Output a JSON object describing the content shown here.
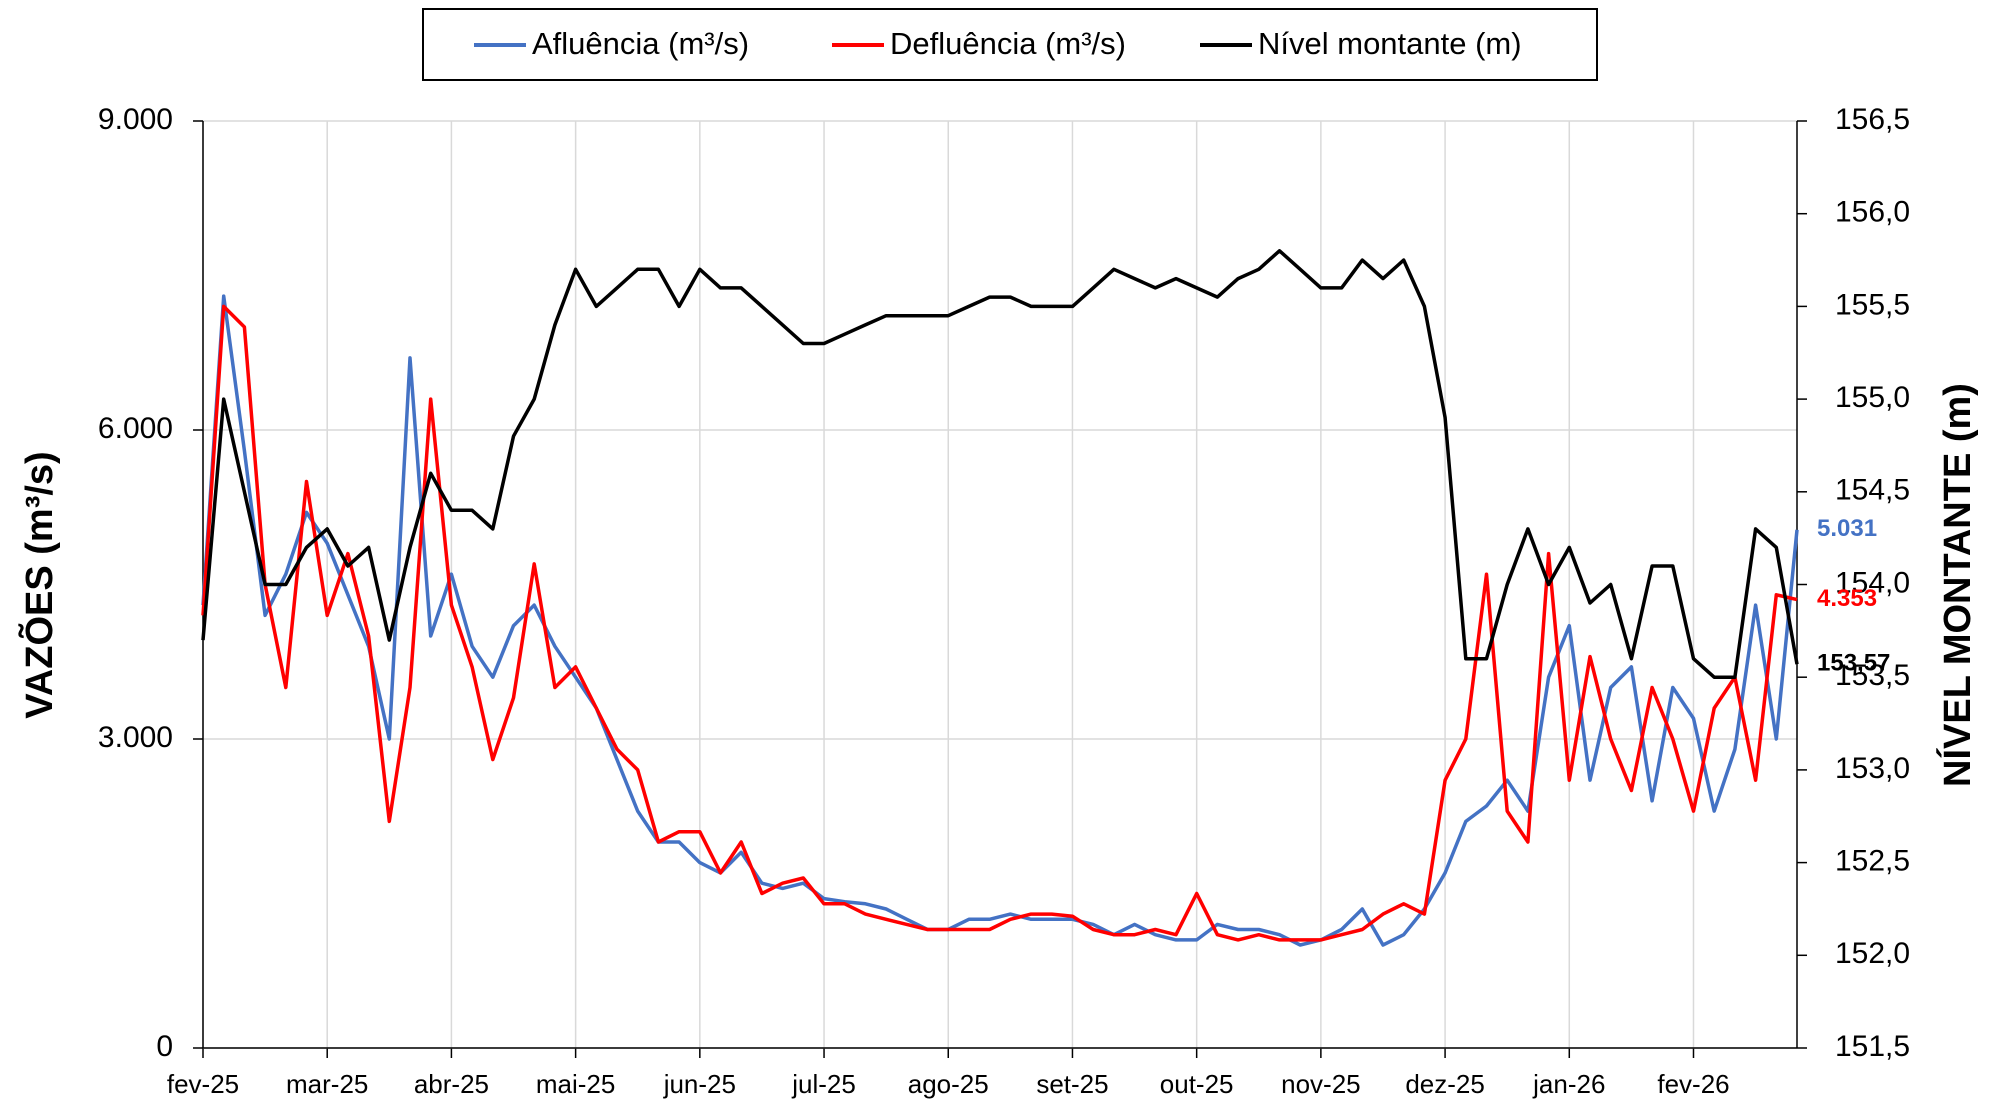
{
  "chart_data": {
    "type": "line",
    "categories": [
      "fev-25",
      null,
      null,
      null,
      null,
      null,
      "mar-25",
      null,
      null,
      null,
      null,
      null,
      "abr-25",
      null,
      null,
      null,
      null,
      null,
      "mai-25",
      null,
      null,
      null,
      null,
      null,
      "jun-25",
      null,
      null,
      null,
      null,
      null,
      "jul-25",
      null,
      null,
      null,
      null,
      null,
      "ago-25",
      null,
      null,
      null,
      null,
      null,
      "set-25",
      null,
      null,
      null,
      null,
      null,
      "out-25",
      null,
      null,
      null,
      null,
      null,
      "nov-25",
      null,
      null,
      null,
      null,
      null,
      "dez-25",
      null,
      null,
      null,
      null,
      null,
      "jan-26",
      null,
      null,
      null,
      null,
      null,
      "fev-26",
      null,
      null,
      null,
      null,
      null
    ],
    "y_label": "VAZÕES (m³/s)",
    "y2_label": "NÍVEL MONTANTE (m)",
    "ylim": [
      0,
      9000
    ],
    "yticks": [
      0,
      {
        "value": 3000,
        "label": "3.000"
      },
      {
        "value": 6000,
        "label": "6.000"
      },
      {
        "value": 9000,
        "label": "9.000"
      }
    ],
    "y2lim": [
      151.5,
      156.5
    ],
    "y2ticks": [
      {
        "value": 151.5,
        "label": "151,5"
      },
      {
        "value": 152,
        "label": "152,0"
      },
      {
        "value": 152.5,
        "label": "152,5"
      },
      {
        "value": 153,
        "label": "153,0"
      },
      {
        "value": 153.5,
        "label": "153,5"
      },
      {
        "value": 154,
        "label": "154,0"
      },
      {
        "value": 154.5,
        "label": "154,5"
      },
      {
        "value": 155,
        "label": "155,0"
      },
      {
        "value": 155.5,
        "label": "155,5"
      },
      {
        "value": 156,
        "label": "156,0"
      },
      {
        "value": 156.5,
        "label": "156,5"
      }
    ],
    "grid": true,
    "legend": "top",
    "series": [
      {
        "name": "Afluência (m³/s)",
        "color": "#4472c4",
        "values": [
          4300,
          7300,
          5800,
          4200,
          4600,
          5200,
          4900,
          4400,
          3900,
          3000,
          6700,
          4000,
          4600,
          3900,
          3600,
          4100,
          4300,
          3900,
          3600,
          3300,
          2800,
          2300,
          2000,
          2000,
          1800,
          1700,
          1900,
          1600,
          1550,
          1600,
          1450,
          1420,
          1400,
          1350,
          1250,
          1150,
          1150,
          1250,
          1250,
          1300,
          1250,
          1250,
          1250,
          1200,
          1100,
          1200,
          1100,
          1050,
          1050,
          1200,
          1150,
          1150,
          1100,
          1000,
          1050,
          1150,
          1350,
          1000,
          1100,
          1350,
          1700,
          2200,
          2350,
          2600,
          2300,
          3600,
          4100,
          2600,
          3500,
          3700,
          2400,
          3500,
          3200,
          2300,
          2900,
          4300,
          3000,
          5031
        ],
        "value_labels": [
          null,
          null,
          null,
          null,
          null,
          null,
          null,
          null,
          null,
          null,
          null,
          null,
          null,
          null,
          null,
          null,
          null,
          null,
          null,
          null,
          null,
          null,
          null,
          null,
          null,
          null,
          null,
          null,
          null,
          null,
          null,
          null,
          null,
          null,
          null,
          null,
          null,
          null,
          null,
          null,
          null,
          null,
          null,
          null,
          null,
          null,
          null,
          null,
          null,
          null,
          null,
          null,
          null,
          null,
          null,
          null,
          null,
          null,
          null,
          null,
          null,
          null,
          null,
          null,
          null,
          null,
          null,
          null,
          null,
          null,
          null,
          null,
          null,
          null,
          null,
          null,
          null,
          "5.031"
        ]
      },
      {
        "name": "Defluência (m³/s)",
        "color": "#ff0000",
        "values": [
          4200,
          7200,
          7000,
          4500,
          3500,
          5500,
          4200,
          4800,
          4000,
          2200,
          3500,
          6300,
          4300,
          3700,
          2800,
          3400,
          4700,
          3500,
          3700,
          3300,
          2900,
          2700,
          2000,
          2100,
          2100,
          1700,
          2000,
          1500,
          1600,
          1650,
          1400,
          1400,
          1300,
          1250,
          1200,
          1150,
          1150,
          1150,
          1150,
          1250,
          1300,
          1300,
          1280,
          1150,
          1100,
          1100,
          1150,
          1100,
          1500,
          1100,
          1050,
          1100,
          1050,
          1050,
          1050,
          1100,
          1150,
          1300,
          1400,
          1300,
          2600,
          3000,
          4600,
          2300,
          2000,
          4800,
          2600,
          3800,
          3000,
          2500,
          3500,
          3000,
          2300,
          3300,
          3600,
          2600,
          4400,
          4353
        ],
        "value_labels": [
          null,
          null,
          null,
          null,
          null,
          null,
          null,
          null,
          null,
          null,
          null,
          null,
          null,
          null,
          null,
          null,
          null,
          null,
          null,
          null,
          null,
          null,
          null,
          null,
          null,
          null,
          null,
          null,
          null,
          null,
          null,
          null,
          null,
          null,
          null,
          null,
          null,
          null,
          null,
          null,
          null,
          null,
          null,
          null,
          null,
          null,
          null,
          null,
          null,
          null,
          null,
          null,
          null,
          null,
          null,
          null,
          null,
          null,
          null,
          null,
          null,
          null,
          null,
          null,
          null,
          null,
          null,
          null,
          null,
          null,
          null,
          null,
          null,
          null,
          null,
          null,
          null,
          "4.353"
        ]
      },
      {
        "name": "Nível montante (m)",
        "color": "#000000",
        "axis": "y2",
        "values": [
          153.7,
          155.0,
          154.5,
          154.0,
          154.0,
          154.2,
          154.3,
          154.1,
          154.2,
          153.7,
          154.2,
          154.6,
          154.4,
          154.4,
          154.3,
          154.8,
          155.0,
          155.4,
          155.7,
          155.5,
          155.6,
          155.7,
          155.7,
          155.5,
          155.7,
          155.6,
          155.6,
          155.5,
          155.4,
          155.3,
          155.3,
          155.35,
          155.4,
          155.45,
          155.45,
          155.45,
          155.45,
          155.5,
          155.55,
          155.55,
          155.5,
          155.5,
          155.5,
          155.6,
          155.7,
          155.65,
          155.6,
          155.65,
          155.6,
          155.55,
          155.65,
          155.7,
          155.8,
          155.7,
          155.6,
          155.6,
          155.75,
          155.65,
          155.75,
          155.5,
          154.9,
          153.6,
          153.6,
          154.0,
          154.3,
          154.0,
          154.2,
          153.9,
          154.0,
          153.6,
          154.1,
          154.1,
          153.6,
          153.5,
          153.5,
          154.3,
          154.2,
          153.57
        ],
        "value_labels": [
          null,
          null,
          null,
          null,
          null,
          null,
          null,
          null,
          null,
          null,
          null,
          null,
          null,
          null,
          null,
          null,
          null,
          null,
          null,
          null,
          null,
          null,
          null,
          null,
          null,
          null,
          null,
          null,
          null,
          null,
          null,
          null,
          null,
          null,
          null,
          null,
          null,
          null,
          null,
          null,
          null,
          null,
          null,
          null,
          null,
          null,
          null,
          null,
          null,
          null,
          null,
          null,
          null,
          null,
          null,
          null,
          null,
          null,
          null,
          null,
          null,
          null,
          null,
          null,
          null,
          null,
          null,
          null,
          null,
          null,
          null,
          null,
          null,
          null,
          null,
          null,
          null,
          "153,57"
        ]
      }
    ]
  }
}
